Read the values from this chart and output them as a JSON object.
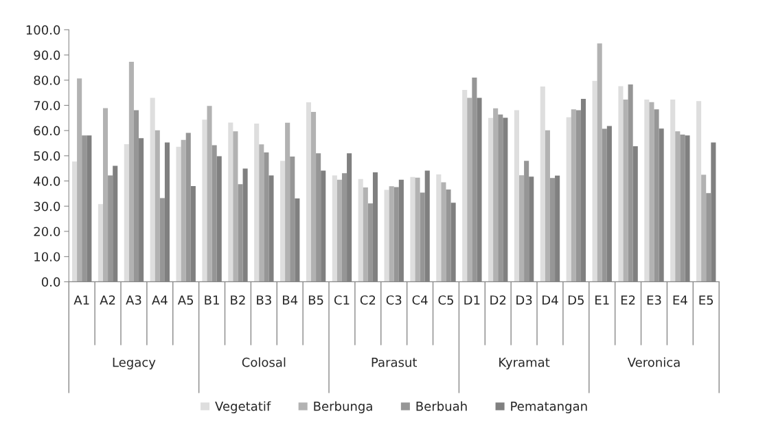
{
  "chart_data": {
    "type": "bar",
    "categories": [
      "A1",
      "A2",
      "A3",
      "A4",
      "A5",
      "B1",
      "B2",
      "B3",
      "B4",
      "B5",
      "C1",
      "C2",
      "C3",
      "C4",
      "C5",
      "D1",
      "D2",
      "D3",
      "D4",
      "D5",
      "E1",
      "E2",
      "E3",
      "E4",
      "E5"
    ],
    "series": [
      {
        "name": "Vegetatif",
        "color": "#dedede",
        "values": [
          47.7,
          30.8,
          54.6,
          73.0,
          53.6,
          64.3,
          63.2,
          62.8,
          48.0,
          71.2,
          42.2,
          40.8,
          36.5,
          41.6,
          42.6,
          76.1,
          65.0,
          68.1,
          77.5,
          65.3,
          79.7,
          77.6,
          72.3,
          72.3,
          71.7
        ]
      },
      {
        "name": "Berbunga",
        "color": "#b2b2b2",
        "values": [
          80.7,
          68.9,
          87.3,
          60.1,
          56.3,
          69.8,
          59.7,
          54.5,
          63.1,
          67.4,
          40.5,
          37.4,
          37.9,
          41.3,
          39.5,
          73.0,
          68.8,
          42.3,
          60.1,
          68.4,
          94.6,
          72.3,
          71.3,
          59.7,
          42.5
        ]
      },
      {
        "name": "Berbuah",
        "color": "#969696",
        "values": [
          58.1,
          42.2,
          68.1,
          33.2,
          59.1,
          54.2,
          38.7,
          51.3,
          49.7,
          51.0,
          43.1,
          31.1,
          37.6,
          35.4,
          36.6,
          81.0,
          66.4,
          48.0,
          41.2,
          68.1,
          60.7,
          78.3,
          68.4,
          58.4,
          35.2
        ]
      },
      {
        "name": "Pematangan",
        "color": "#808080",
        "values": [
          58.1,
          46.0,
          57.0,
          55.3,
          38.0,
          49.8,
          44.9,
          42.2,
          33.1,
          44.1,
          51.0,
          43.4,
          40.5,
          44.1,
          31.4,
          73.0,
          65.1,
          41.7,
          42.1,
          72.6,
          61.8,
          53.8,
          60.8,
          58.1,
          55.3
        ]
      }
    ],
    "annotations": [
      "Legacy",
      "Colosal",
      "Parasut",
      "Kyramat",
      "Veronica"
    ],
    "ylim": [
      0,
      100
    ],
    "yticks": [
      {
        "value": 0,
        "label": "0.0"
      },
      {
        "value": 10,
        "label": "10.0"
      },
      {
        "value": 20,
        "label": "20.0"
      },
      {
        "value": 30,
        "label": "30.0"
      },
      {
        "value": 40,
        "label": "40.0"
      },
      {
        "value": 50,
        "label": "50.0"
      },
      {
        "value": 60,
        "label": "60.0"
      },
      {
        "value": 70,
        "label": "70.0"
      },
      {
        "value": 80,
        "label": "80.0"
      },
      {
        "value": 90,
        "label": "90.0"
      },
      {
        "value": 100,
        "label": "100.0"
      }
    ],
    "grid": false,
    "legend": "bottom"
  }
}
